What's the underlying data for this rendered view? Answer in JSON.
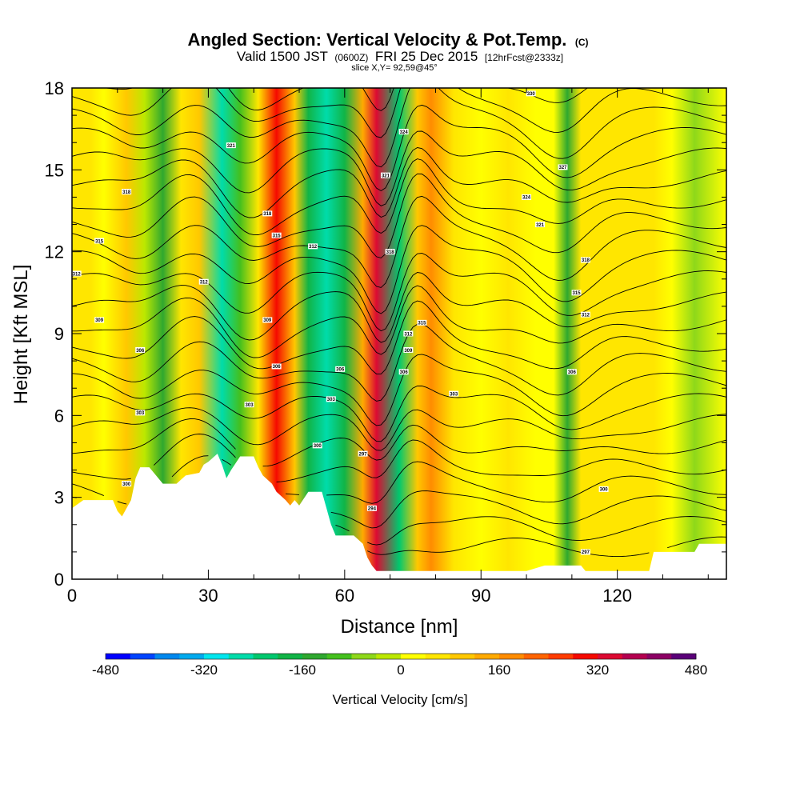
{
  "chart_data": {
    "type": "heatmap",
    "title": {
      "main": "Angled Section: Vertical Velocity & Pot.Temp.",
      "unit_note": "(C)",
      "valid_prefix": "Valid 1500 JST",
      "valid_utc": "(0600Z)",
      "valid_date": "FRI 25 Dec 2015",
      "forecast_note": "[12hrFcst@2333z]",
      "slice": "slice X,Y= 92,59@45°"
    },
    "xlabel": "Distance [nm]",
    "ylabel": "Height [Kft MSL]",
    "xlim": [
      0,
      144
    ],
    "ylim": [
      0,
      18
    ],
    "x_ticks": [
      0,
      30,
      60,
      90,
      120
    ],
    "y_ticks": [
      0,
      3,
      6,
      9,
      12,
      15,
      18
    ],
    "colorbar": {
      "label": "Vertical Velocity [cm/s]",
      "min": -480,
      "max": 480,
      "tick_labels": [
        "-480",
        "-320",
        "-160",
        "0",
        "160",
        "320",
        "480"
      ],
      "colors": [
        "#0000ff",
        "#0044ff",
        "#0088ee",
        "#00aaee",
        "#00e6ee",
        "#00dcaa",
        "#00c86e",
        "#11b446",
        "#2fa82f",
        "#44c01e",
        "#8ed81a",
        "#bce800",
        "#ffff00",
        "#ffe600",
        "#ffc800",
        "#ffaa00",
        "#ff8c00",
        "#ff6400",
        "#ff3c00",
        "#f50a00",
        "#dc0a32",
        "#b40050",
        "#8c0064",
        "#5a0078"
      ]
    },
    "velocity_bands": [
      {
        "x": 0,
        "v": 40
      },
      {
        "x": 4,
        "v": 70
      },
      {
        "x": 7,
        "v": 20
      },
      {
        "x": 12,
        "v": 90
      },
      {
        "x": 16,
        "v": -40
      },
      {
        "x": 20,
        "v": -140
      },
      {
        "x": 24,
        "v": 40
      },
      {
        "x": 28,
        "v": 90
      },
      {
        "x": 33,
        "v": -250
      },
      {
        "x": 37,
        "v": -120
      },
      {
        "x": 41,
        "v": 60
      },
      {
        "x": 45,
        "v": 280
      },
      {
        "x": 49,
        "v": 80
      },
      {
        "x": 52,
        "v": -180
      },
      {
        "x": 56,
        "v": -280
      },
      {
        "x": 60,
        "v": -200
      },
      {
        "x": 64,
        "v": 150
      },
      {
        "x": 67,
        "v": 320
      },
      {
        "x": 72,
        "v": -220
      },
      {
        "x": 76,
        "v": 80
      },
      {
        "x": 79,
        "v": 170
      },
      {
        "x": 84,
        "v": 60
      },
      {
        "x": 90,
        "v": 0
      },
      {
        "x": 96,
        "v": 60
      },
      {
        "x": 102,
        "v": 30
      },
      {
        "x": 106,
        "v": 20
      },
      {
        "x": 109,
        "v": -160
      },
      {
        "x": 112,
        "v": 50
      },
      {
        "x": 116,
        "v": 60
      },
      {
        "x": 122,
        "v": 40
      },
      {
        "x": 128,
        "v": 60
      },
      {
        "x": 132,
        "v": 20
      },
      {
        "x": 137,
        "v": -70
      },
      {
        "x": 144,
        "v": 20
      }
    ],
    "terrain": [
      [
        0,
        2.6
      ],
      [
        2.5,
        2.9
      ],
      [
        9,
        2.9
      ],
      [
        10,
        2.5
      ],
      [
        11,
        2.3
      ],
      [
        12,
        2.6
      ],
      [
        13,
        2.9
      ],
      [
        14,
        3.7
      ],
      [
        15,
        4.1
      ],
      [
        17,
        4.1
      ],
      [
        19,
        3.7
      ],
      [
        20,
        3.5
      ],
      [
        23,
        3.5
      ],
      [
        25,
        3.8
      ],
      [
        28,
        3.9
      ],
      [
        29,
        4.2
      ],
      [
        30,
        4.3
      ],
      [
        32,
        4.6
      ],
      [
        33,
        4.2
      ],
      [
        34,
        3.7
      ],
      [
        35,
        4.0
      ],
      [
        37,
        4.5
      ],
      [
        40,
        4.5
      ],
      [
        41,
        4.1
      ],
      [
        42,
        3.8
      ],
      [
        44,
        3.5
      ],
      [
        45,
        3.2
      ],
      [
        47,
        2.9
      ],
      [
        48,
        2.7
      ],
      [
        49,
        2.9
      ],
      [
        50,
        2.7
      ],
      [
        52,
        3.2
      ],
      [
        55,
        3.2
      ],
      [
        56,
        2.6
      ],
      [
        57,
        2.0
      ],
      [
        58,
        1.6
      ],
      [
        62,
        1.6
      ],
      [
        64,
        1.3
      ],
      [
        65,
        0.8
      ],
      [
        66,
        0.5
      ],
      [
        67,
        0.3
      ],
      [
        100,
        0.3
      ],
      [
        104,
        0.5
      ],
      [
        112,
        0.5
      ],
      [
        113,
        0.3
      ],
      [
        127,
        0.3
      ],
      [
        128,
        1.0
      ],
      [
        137,
        1.0
      ],
      [
        138,
        1.3
      ],
      [
        144,
        1.3
      ]
    ],
    "contour_labels": [
      {
        "x": 1,
        "y": 11.2,
        "text": "312"
      },
      {
        "x": 6,
        "y": 12.4,
        "text": "315"
      },
      {
        "x": 12,
        "y": 14.2,
        "text": "318"
      },
      {
        "x": 35,
        "y": 15.9,
        "text": "321"
      },
      {
        "x": 6,
        "y": 9.5,
        "text": "309"
      },
      {
        "x": 15,
        "y": 8.4,
        "text": "306"
      },
      {
        "x": 15,
        "y": 6.1,
        "text": "303"
      },
      {
        "x": 12,
        "y": 3.5,
        "text": "300"
      },
      {
        "x": 29,
        "y": 10.9,
        "text": "312"
      },
      {
        "x": 43,
        "y": 13.4,
        "text": "318"
      },
      {
        "x": 45,
        "y": 12.6,
        "text": "315"
      },
      {
        "x": 43,
        "y": 9.5,
        "text": "309"
      },
      {
        "x": 45,
        "y": 7.8,
        "text": "306"
      },
      {
        "x": 39,
        "y": 6.4,
        "text": "303"
      },
      {
        "x": 53,
        "y": 12.2,
        "text": "312"
      },
      {
        "x": 59,
        "y": 7.7,
        "text": "306"
      },
      {
        "x": 57,
        "y": 6.6,
        "text": "303"
      },
      {
        "x": 54,
        "y": 4.9,
        "text": "300"
      },
      {
        "x": 64,
        "y": 4.6,
        "text": "297"
      },
      {
        "x": 66,
        "y": 2.6,
        "text": "294"
      },
      {
        "x": 69,
        "y": 14.8,
        "text": "321"
      },
      {
        "x": 70,
        "y": 12.0,
        "text": "318"
      },
      {
        "x": 73,
        "y": 16.4,
        "text": "324"
      },
      {
        "x": 74,
        "y": 9.0,
        "text": "312"
      },
      {
        "x": 74,
        "y": 8.4,
        "text": "309"
      },
      {
        "x": 73,
        "y": 7.6,
        "text": "306"
      },
      {
        "x": 77,
        "y": 9.4,
        "text": "315"
      },
      {
        "x": 84,
        "y": 6.8,
        "text": "303"
      },
      {
        "x": 101,
        "y": 17.8,
        "text": "330"
      },
      {
        "x": 108,
        "y": 15.1,
        "text": "327"
      },
      {
        "x": 100,
        "y": 14.0,
        "text": "324"
      },
      {
        "x": 103,
        "y": 13.0,
        "text": "321"
      },
      {
        "x": 113,
        "y": 11.7,
        "text": "318"
      },
      {
        "x": 111,
        "y": 10.5,
        "text": "315"
      },
      {
        "x": 113,
        "y": 9.7,
        "text": "312"
      },
      {
        "x": 110,
        "y": 7.6,
        "text": "306"
      },
      {
        "x": 117,
        "y": 3.3,
        "text": "300"
      },
      {
        "x": 113,
        "y": 1.0,
        "text": "297"
      }
    ]
  }
}
